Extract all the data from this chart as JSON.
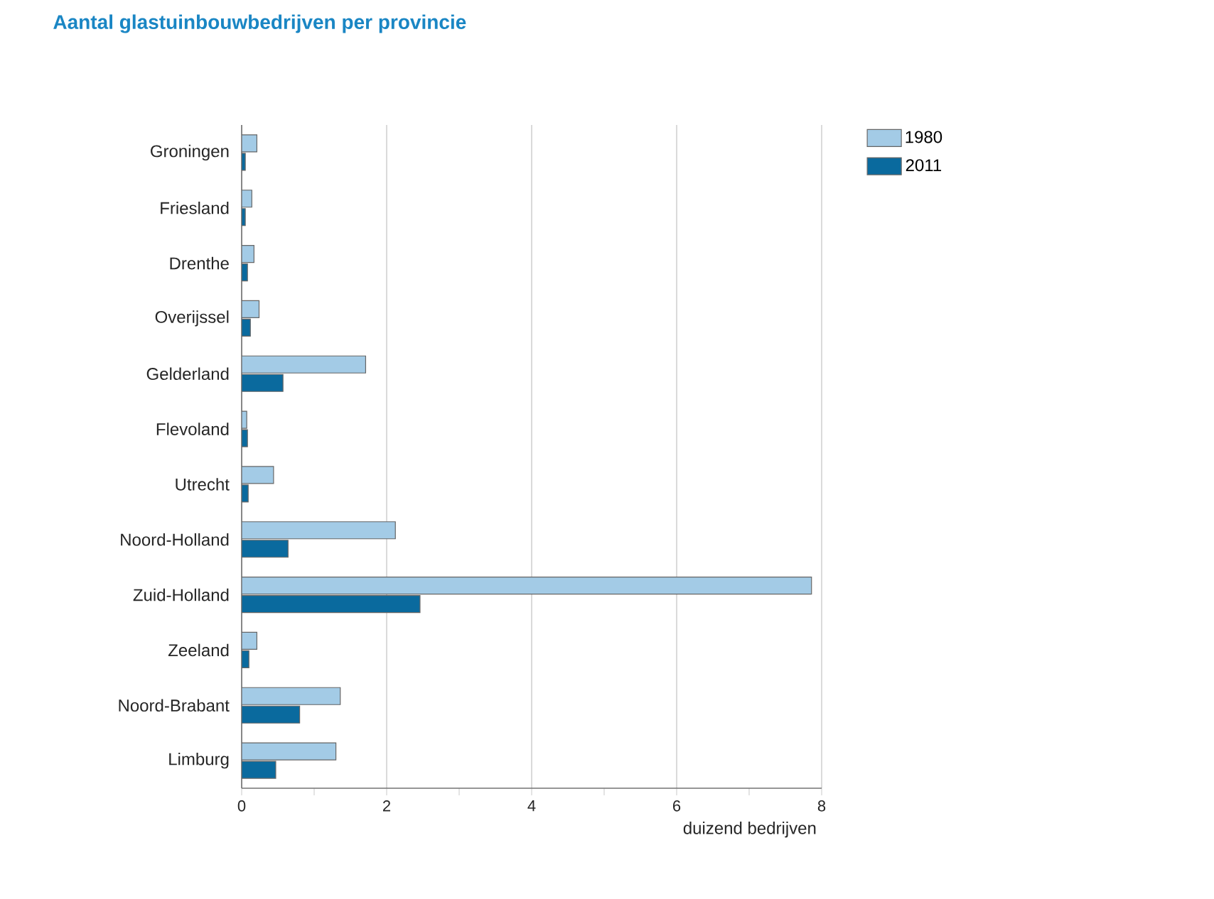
{
  "chart_data": {
    "type": "bar",
    "orientation": "horizontal",
    "title": "Aantal glastuinbouwbedrijven per provincie",
    "xlabel": "duizend bedrijven",
    "categories": [
      "Groningen",
      "Friesland",
      "Drenthe",
      "Overijssel",
      "Gelderland",
      "Flevoland",
      "Utrecht",
      "Noord-Holland",
      "Zuid-Holland",
      "Zeeland",
      "Noord-Brabant",
      "Limburg"
    ],
    "series": [
      {
        "name": "1980",
        "color": "#a3cbe6",
        "values": [
          0.21,
          0.14,
          0.17,
          0.24,
          1.71,
          0.07,
          0.44,
          2.12,
          7.86,
          0.21,
          1.36,
          1.3
        ]
      },
      {
        "name": "2011",
        "color": "#0a6a9e",
        "values": [
          0.05,
          0.05,
          0.08,
          0.12,
          0.57,
          0.08,
          0.09,
          0.64,
          2.46,
          0.1,
          0.8,
          0.47
        ]
      }
    ],
    "xlim": [
      0,
      8
    ],
    "xticks": [
      0,
      {
        "value": 1,
        "label": null
      },
      2,
      {
        "value": 3,
        "label": null
      },
      4,
      {
        "value": 5,
        "label": null
      },
      6,
      {
        "value": 7,
        "label": null
      },
      8
    ],
    "grid": "x",
    "legend": "top right"
  }
}
